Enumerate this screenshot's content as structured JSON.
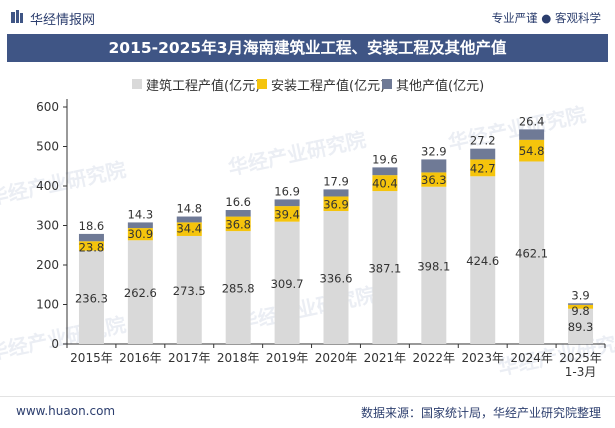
{
  "header": {
    "brand": "华经情报网",
    "tagline": "专业严谨 ● 客观科学"
  },
  "footer": {
    "site": "www.huaon.com",
    "source": "数据来源：国家统计局，华经产业研究院整理"
  },
  "watermark": "华经产业研究院",
  "chart_data": {
    "type": "bar",
    "stacked": true,
    "title": "2015-2025年3月海南建筑业工程、安装工程及其他产值",
    "categories": [
      "2015年",
      "2016年",
      "2017年",
      "2018年",
      "2019年",
      "2020年",
      "2021年",
      "2022年",
      "2023年",
      "2024年",
      "2025年\n1-3月"
    ],
    "series": [
      {
        "name": "建筑工程产值(亿元)",
        "color": "#d9d9d9",
        "label_color": "#333333",
        "values": [
          236.3,
          262.6,
          273.5,
          285.8,
          309.7,
          336.6,
          387.1,
          398.1,
          424.6,
          462.1,
          89.3
        ]
      },
      {
        "name": "安装工程产值(亿元)",
        "color": "#f5c40c",
        "label_color": "#333333",
        "values": [
          23.8,
          30.9,
          34.4,
          36.8,
          39.4,
          36.9,
          40.4,
          36.3,
          42.7,
          54.8,
          9.8
        ]
      },
      {
        "name": "其他产值(亿元)",
        "color": "#6f7a96",
        "label_color": "#333333",
        "values": [
          18.6,
          14.3,
          14.8,
          16.6,
          16.9,
          17.9,
          19.6,
          32.9,
          27.2,
          26.4,
          3.9
        ]
      }
    ],
    "yaxis": {
      "min": 0,
      "max": 600,
      "ticks": [
        0,
        100,
        200,
        300,
        400,
        500,
        600
      ]
    },
    "legend_position": "top",
    "grid": false
  }
}
